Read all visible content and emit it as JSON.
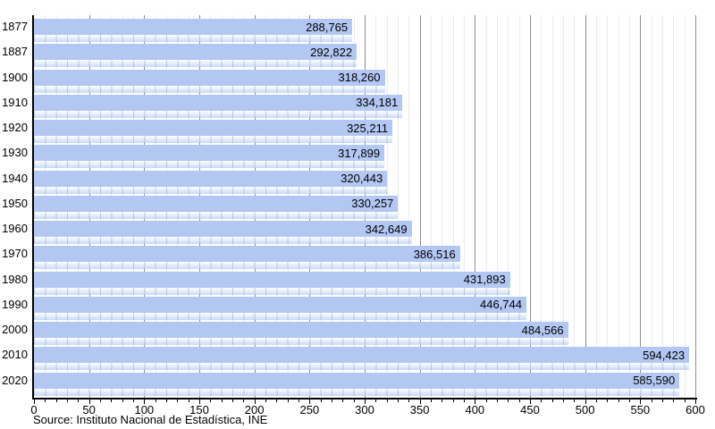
{
  "chart_data": {
    "type": "bar",
    "orientation": "horizontal",
    "title": "",
    "xlabel": "",
    "ylabel": "",
    "categories": [
      "1877",
      "1887",
      "1900",
      "1910",
      "1920",
      "1930",
      "1940",
      "1950",
      "1960",
      "1970",
      "1980",
      "1990",
      "2000",
      "2010",
      "2020"
    ],
    "values": [
      288765,
      292822,
      318260,
      334181,
      325211,
      317899,
      320443,
      330257,
      342649,
      386516,
      431893,
      446744,
      484566,
      594423,
      585590
    ],
    "value_labels": [
      "288,765",
      "292,822",
      "318,260",
      "334,181",
      "325,211",
      "317,899",
      "320,443",
      "330,257",
      "342,649",
      "386,516",
      "431,893",
      "446,744",
      "484,566",
      "594,423",
      "585,590"
    ],
    "xlim": [
      0,
      600
    ],
    "axis_units": "thousands",
    "xticks": [
      0,
      50,
      100,
      150,
      200,
      250,
      300,
      350,
      400,
      450,
      500,
      550,
      600
    ],
    "x_tick_step": 50,
    "x_minor_step": 10,
    "grid": true,
    "legend": "none",
    "source": "Source: Instituto Nacional de Estadística, INE",
    "colors": {
      "bar": "#b3c7f3",
      "strip_top": "#ffffff",
      "strip_bottom": "#c5d7f7",
      "major_grid": "#8f8f8f",
      "minor_grid": "#ebebeb",
      "axis": "#000000",
      "text": "#000000",
      "background": "#ffffff"
    }
  }
}
